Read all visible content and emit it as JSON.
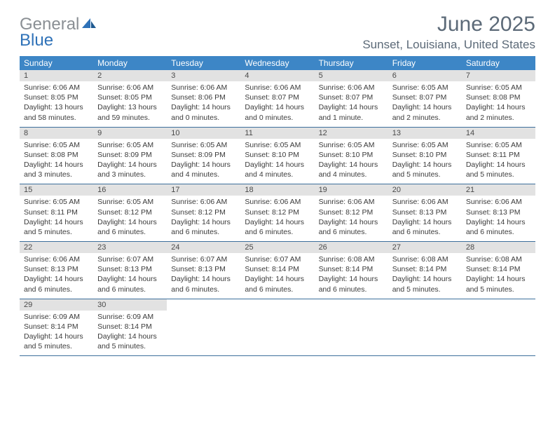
{
  "logo": {
    "text1": "General",
    "text2": "Blue"
  },
  "title": "June 2025",
  "location": "Sunset, Louisiana, United States",
  "colors": {
    "header_bar": "#3d86c6",
    "daynum_bg": "#e2e2e2",
    "week_border": "#3d6f9c",
    "title_color": "#5c6a78",
    "logo_gray": "#8a8f94",
    "logo_blue": "#2f72b8"
  },
  "dow": [
    "Sunday",
    "Monday",
    "Tuesday",
    "Wednesday",
    "Thursday",
    "Friday",
    "Saturday"
  ],
  "weeks": [
    [
      {
        "n": "1",
        "sr": "Sunrise: 6:06 AM",
        "ss": "Sunset: 8:05 PM",
        "dl1": "Daylight: 13 hours",
        "dl2": "and 58 minutes."
      },
      {
        "n": "2",
        "sr": "Sunrise: 6:06 AM",
        "ss": "Sunset: 8:05 PM",
        "dl1": "Daylight: 13 hours",
        "dl2": "and 59 minutes."
      },
      {
        "n": "3",
        "sr": "Sunrise: 6:06 AM",
        "ss": "Sunset: 8:06 PM",
        "dl1": "Daylight: 14 hours",
        "dl2": "and 0 minutes."
      },
      {
        "n": "4",
        "sr": "Sunrise: 6:06 AM",
        "ss": "Sunset: 8:07 PM",
        "dl1": "Daylight: 14 hours",
        "dl2": "and 0 minutes."
      },
      {
        "n": "5",
        "sr": "Sunrise: 6:06 AM",
        "ss": "Sunset: 8:07 PM",
        "dl1": "Daylight: 14 hours",
        "dl2": "and 1 minute."
      },
      {
        "n": "6",
        "sr": "Sunrise: 6:05 AM",
        "ss": "Sunset: 8:07 PM",
        "dl1": "Daylight: 14 hours",
        "dl2": "and 2 minutes."
      },
      {
        "n": "7",
        "sr": "Sunrise: 6:05 AM",
        "ss": "Sunset: 8:08 PM",
        "dl1": "Daylight: 14 hours",
        "dl2": "and 2 minutes."
      }
    ],
    [
      {
        "n": "8",
        "sr": "Sunrise: 6:05 AM",
        "ss": "Sunset: 8:08 PM",
        "dl1": "Daylight: 14 hours",
        "dl2": "and 3 minutes."
      },
      {
        "n": "9",
        "sr": "Sunrise: 6:05 AM",
        "ss": "Sunset: 8:09 PM",
        "dl1": "Daylight: 14 hours",
        "dl2": "and 3 minutes."
      },
      {
        "n": "10",
        "sr": "Sunrise: 6:05 AM",
        "ss": "Sunset: 8:09 PM",
        "dl1": "Daylight: 14 hours",
        "dl2": "and 4 minutes."
      },
      {
        "n": "11",
        "sr": "Sunrise: 6:05 AM",
        "ss": "Sunset: 8:10 PM",
        "dl1": "Daylight: 14 hours",
        "dl2": "and 4 minutes."
      },
      {
        "n": "12",
        "sr": "Sunrise: 6:05 AM",
        "ss": "Sunset: 8:10 PM",
        "dl1": "Daylight: 14 hours",
        "dl2": "and 4 minutes."
      },
      {
        "n": "13",
        "sr": "Sunrise: 6:05 AM",
        "ss": "Sunset: 8:10 PM",
        "dl1": "Daylight: 14 hours",
        "dl2": "and 5 minutes."
      },
      {
        "n": "14",
        "sr": "Sunrise: 6:05 AM",
        "ss": "Sunset: 8:11 PM",
        "dl1": "Daylight: 14 hours",
        "dl2": "and 5 minutes."
      }
    ],
    [
      {
        "n": "15",
        "sr": "Sunrise: 6:05 AM",
        "ss": "Sunset: 8:11 PM",
        "dl1": "Daylight: 14 hours",
        "dl2": "and 5 minutes."
      },
      {
        "n": "16",
        "sr": "Sunrise: 6:05 AM",
        "ss": "Sunset: 8:12 PM",
        "dl1": "Daylight: 14 hours",
        "dl2": "and 6 minutes."
      },
      {
        "n": "17",
        "sr": "Sunrise: 6:06 AM",
        "ss": "Sunset: 8:12 PM",
        "dl1": "Daylight: 14 hours",
        "dl2": "and 6 minutes."
      },
      {
        "n": "18",
        "sr": "Sunrise: 6:06 AM",
        "ss": "Sunset: 8:12 PM",
        "dl1": "Daylight: 14 hours",
        "dl2": "and 6 minutes."
      },
      {
        "n": "19",
        "sr": "Sunrise: 6:06 AM",
        "ss": "Sunset: 8:12 PM",
        "dl1": "Daylight: 14 hours",
        "dl2": "and 6 minutes."
      },
      {
        "n": "20",
        "sr": "Sunrise: 6:06 AM",
        "ss": "Sunset: 8:13 PM",
        "dl1": "Daylight: 14 hours",
        "dl2": "and 6 minutes."
      },
      {
        "n": "21",
        "sr": "Sunrise: 6:06 AM",
        "ss": "Sunset: 8:13 PM",
        "dl1": "Daylight: 14 hours",
        "dl2": "and 6 minutes."
      }
    ],
    [
      {
        "n": "22",
        "sr": "Sunrise: 6:06 AM",
        "ss": "Sunset: 8:13 PM",
        "dl1": "Daylight: 14 hours",
        "dl2": "and 6 minutes."
      },
      {
        "n": "23",
        "sr": "Sunrise: 6:07 AM",
        "ss": "Sunset: 8:13 PM",
        "dl1": "Daylight: 14 hours",
        "dl2": "and 6 minutes."
      },
      {
        "n": "24",
        "sr": "Sunrise: 6:07 AM",
        "ss": "Sunset: 8:13 PM",
        "dl1": "Daylight: 14 hours",
        "dl2": "and 6 minutes."
      },
      {
        "n": "25",
        "sr": "Sunrise: 6:07 AM",
        "ss": "Sunset: 8:14 PM",
        "dl1": "Daylight: 14 hours",
        "dl2": "and 6 minutes."
      },
      {
        "n": "26",
        "sr": "Sunrise: 6:08 AM",
        "ss": "Sunset: 8:14 PM",
        "dl1": "Daylight: 14 hours",
        "dl2": "and 6 minutes."
      },
      {
        "n": "27",
        "sr": "Sunrise: 6:08 AM",
        "ss": "Sunset: 8:14 PM",
        "dl1": "Daylight: 14 hours",
        "dl2": "and 5 minutes."
      },
      {
        "n": "28",
        "sr": "Sunrise: 6:08 AM",
        "ss": "Sunset: 8:14 PM",
        "dl1": "Daylight: 14 hours",
        "dl2": "and 5 minutes."
      }
    ],
    [
      {
        "n": "29",
        "sr": "Sunrise: 6:09 AM",
        "ss": "Sunset: 8:14 PM",
        "dl1": "Daylight: 14 hours",
        "dl2": "and 5 minutes."
      },
      {
        "n": "30",
        "sr": "Sunrise: 6:09 AM",
        "ss": "Sunset: 8:14 PM",
        "dl1": "Daylight: 14 hours",
        "dl2": "and 5 minutes."
      },
      null,
      null,
      null,
      null,
      null
    ]
  ]
}
